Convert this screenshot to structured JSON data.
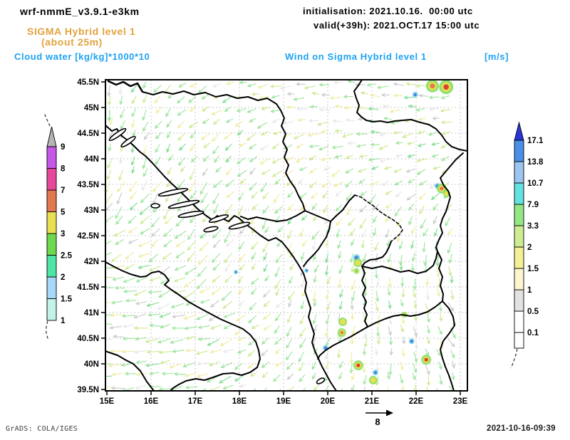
{
  "header": {
    "model_title": "wrf-nmmE_v3.9.1-e3km",
    "level_line1": "SIGMA Hybrid level 1",
    "level_line2": "(about 25m)",
    "cloud_label": "Cloud water [kg/kg]*1000*10",
    "init_line": "initialisation: 2021.10.16.  00:00 utc",
    "valid_line": "valid(+39h): 2021.OCT.17 15:00 utc",
    "wind_label": "Wind on Sigma Hybrid level 1",
    "wind_units": "[m/s]"
  },
  "footer": {
    "credit": "GrADS: COLA/IGES",
    "timestamp": "2021-10-16-09:39",
    "ref_arrow_value": "8"
  },
  "colors": {
    "title_text": "#000000",
    "level_text": "#e2a33d",
    "field_label_text": "#1ea2f2",
    "gridline": "#c9c9c9",
    "coast_border": "#000000"
  },
  "chart_data": {
    "type": "heatmap",
    "title": "Cloud water [kg/kg]*1000*10 (shaded) + Wind on Sigma Hybrid level 1 (vectors)",
    "model": "wrf-nmmE_v3.9.1-e3km",
    "level": "SIGMA Hybrid level 1 (about 25m)",
    "initialisation": "2021.10.16. 00:00 utc",
    "valid": "(+39h) 2021.OCT.17 15:00 utc",
    "grid": true,
    "lon_range": [
      15,
      23.2
    ],
    "lat_range": [
      39.5,
      45.55
    ],
    "lon_ticks": [
      "15E",
      "16E",
      "17E",
      "18E",
      "19E",
      "20E",
      "21E",
      "22E",
      "23E"
    ],
    "lat_ticks": [
      "39.5N",
      "40N",
      "40.5N",
      "41N",
      "41.5N",
      "42N",
      "42.5N",
      "43N",
      "43.5N",
      "44N",
      "44.5N",
      "45N",
      "45.5N"
    ],
    "cloud_water_scale": {
      "units": "[kg/kg]*1000*10",
      "labels": [
        "1",
        "1.5",
        "2",
        "2.5",
        "3",
        "5",
        "7",
        "8",
        "9"
      ],
      "colors": [
        "#c4f2e8",
        "#a6d8f7",
        "#4fe3a4",
        "#6ed84e",
        "#e8e050",
        "#e0794f",
        "#e8489a",
        "#c658e8"
      ],
      "over_color": "#b5b5b5"
    },
    "wind_scale": {
      "units": "m/s",
      "labels": [
        "0.1",
        "0.5",
        "1",
        "1.5",
        "2",
        "3.3",
        "7.9",
        "10.7",
        "13.8",
        "17.1"
      ],
      "colors": [
        "#ffffff",
        "#e2e2e2",
        "#fdf6cd",
        "#f5f095",
        "#cdec93",
        "#93e883",
        "#63e3e0",
        "#9cc6f0",
        "#4a90e8"
      ],
      "over_color": "#2a35d8"
    },
    "reference_arrow": {
      "label": "8"
    },
    "cloud_spots": [
      {
        "lon": 22.37,
        "lat": 45.42,
        "size": 9,
        "core": "orange"
      },
      {
        "lon": 22.68,
        "lat": 45.4,
        "size": 10,
        "core": "red"
      },
      {
        "lon": 21.98,
        "lat": 45.25,
        "size": 4,
        "core": "cyan"
      },
      {
        "lon": 22.48,
        "lat": 43.47,
        "size": 4,
        "core": "cyan"
      },
      {
        "lon": 22.58,
        "lat": 43.42,
        "size": 7,
        "core": "orange"
      },
      {
        "lon": 22.69,
        "lat": 43.32,
        "size": 5,
        "core": "yellow"
      },
      {
        "lon": 20.65,
        "lat": 42.07,
        "size": 5,
        "core": "cyan"
      },
      {
        "lon": 20.68,
        "lat": 41.97,
        "size": 6,
        "core": "yellow"
      },
      {
        "lon": 20.65,
        "lat": 41.81,
        "size": 4,
        "core": "green"
      },
      {
        "lon": 20.34,
        "lat": 40.82,
        "size": 6,
        "core": "yellow"
      },
      {
        "lon": 20.32,
        "lat": 40.61,
        "size": 6,
        "core": "orange"
      },
      {
        "lon": 19.95,
        "lat": 40.31,
        "size": 4,
        "core": "cyan"
      },
      {
        "lon": 20.69,
        "lat": 39.97,
        "size": 7,
        "core": "red"
      },
      {
        "lon": 21.08,
        "lat": 39.83,
        "size": 4,
        "core": "cyan"
      },
      {
        "lon": 21.03,
        "lat": 39.68,
        "size": 6,
        "core": "yellow"
      },
      {
        "lon": 21.74,
        "lat": 40.96,
        "size": 4,
        "core": "green"
      },
      {
        "lon": 21.9,
        "lat": 40.44,
        "size": 4,
        "core": "cyan"
      },
      {
        "lon": 22.23,
        "lat": 40.08,
        "size": 7,
        "core": "red"
      },
      {
        "lon": 19.52,
        "lat": 41.82,
        "size": 3,
        "core": "cyan"
      },
      {
        "lon": 17.92,
        "lat": 41.79,
        "size": 3,
        "core": "cyan"
      }
    ]
  }
}
